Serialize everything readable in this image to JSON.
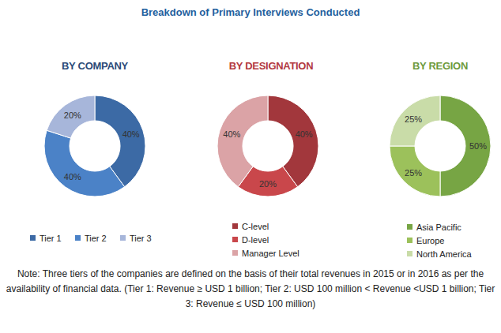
{
  "title": "Breakdown of Primary Interviews Conducted",
  "chart_data": [
    {
      "type": "donut",
      "title": "BY COMPANY",
      "categories": [
        "Tier 1",
        "Tier 2",
        "Tier 3"
      ],
      "values": [
        40,
        40,
        20
      ],
      "value_labels": [
        "40%",
        "40%",
        "20%"
      ],
      "colors": [
        "#3c6aa5",
        "#4b82c7",
        "#a7b6da"
      ],
      "data_labels": true,
      "legend": "bottom"
    },
    {
      "type": "donut",
      "title": "BY DESIGNATION",
      "categories": [
        "C-level",
        "D-level",
        "Manager Level"
      ],
      "values": [
        40,
        20,
        40
      ],
      "value_labels": [
        "40%",
        "20%",
        "40%"
      ],
      "colors": [
        "#a2373c",
        "#c9474b",
        "#dba3a6"
      ],
      "data_labels": true,
      "legend": "bottom"
    },
    {
      "type": "donut",
      "title": "BY REGION",
      "categories": [
        "Asia Pacific",
        "Europe",
        "North America"
      ],
      "values": [
        50,
        25,
        25
      ],
      "value_labels": [
        "50%",
        "25%",
        "25%"
      ],
      "colors": [
        "#77a544",
        "#9cc15b",
        "#c9dca8"
      ],
      "data_labels": true,
      "legend": "bottom"
    }
  ],
  "note": "Note: Three tiers of the companies are defined on the basis of their total revenues in 2015 or in 2016 as per the availability of financial data. (Tier 1: Revenue ≥ USD 1 billion; Tier 2: USD 100 million < Revenue <USD 1 billion; Tier 3: Revenue ≤ USD 100 million)"
}
